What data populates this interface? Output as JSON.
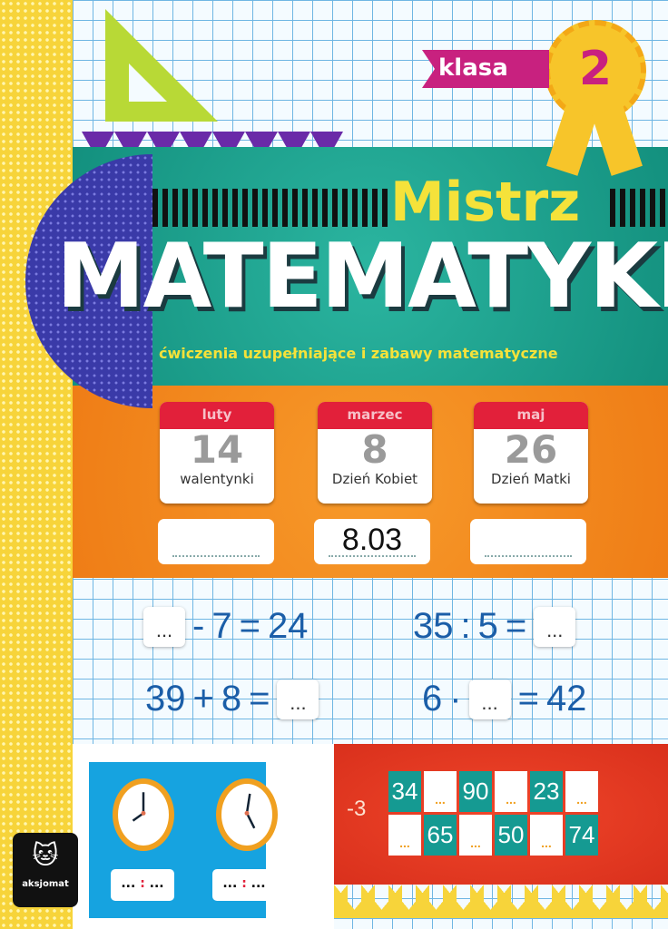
{
  "badge": {
    "label": "klasa",
    "grade": "2"
  },
  "cover": {
    "title_top": "Mistrz",
    "title_main": "MATEMATYKI",
    "subtitle": "ćwiczenia uzupełniające i zabawy matematyczne"
  },
  "calendars": [
    {
      "month": "luty",
      "day": "14",
      "name": "walentynki",
      "answer": ""
    },
    {
      "month": "marzec",
      "day": "8",
      "name": "Dzień Kobiet",
      "answer": "8.03"
    },
    {
      "month": "maj",
      "day": "26",
      "name": "Dzień Matki",
      "answer": ""
    }
  ],
  "equations": [
    {
      "a": "...",
      "op": "-",
      "b": "7",
      "eq": "=",
      "c": "24"
    },
    {
      "a": "35",
      "op": ":",
      "b": "5",
      "eq": "=",
      "c": "..."
    },
    {
      "a": "39",
      "op": "+",
      "b": "8",
      "eq": "=",
      "c": "..."
    },
    {
      "a": "6",
      "op": "·",
      "b": "...",
      "eq": "=",
      "c": "42"
    }
  ],
  "clocks": {
    "blank": "...",
    "sep": ":"
  },
  "sequence": {
    "step": "-3",
    "row1": [
      "34",
      "...",
      "90",
      "...",
      "23",
      "..."
    ],
    "row2": [
      "...",
      "65",
      "...",
      "50",
      "...",
      "74"
    ]
  },
  "publisher": "aksjomat",
  "colors": {
    "teal": "#13907e",
    "orange": "#ef7d16",
    "red": "#d9301c",
    "blue": "#16a3e0",
    "yellow": "#f7d43a",
    "magenta": "#c8217f"
  }
}
